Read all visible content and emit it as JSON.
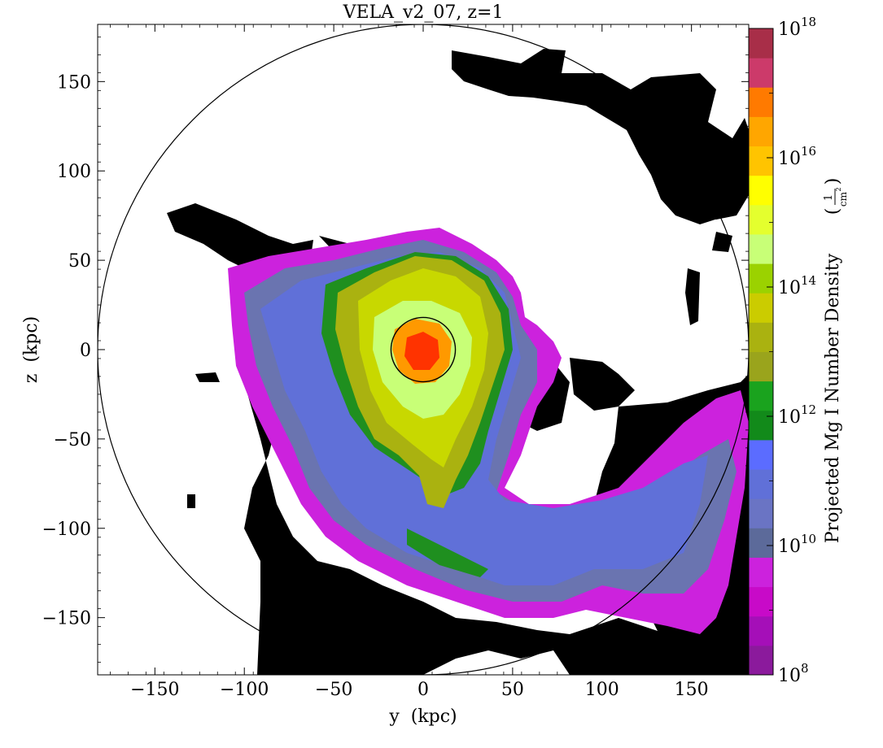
{
  "chart_data": {
    "type": "heatmap",
    "title": "VELA_v2_07, z=1",
    "xlabel": "y  (kpc)",
    "ylabel": "z  (kpc)",
    "xlim": [
      -182,
      182
    ],
    "ylim": [
      -182,
      182
    ],
    "x_ticks": [
      "−150",
      "−100",
      "−50",
      "0",
      "50",
      "100",
      "150"
    ],
    "y_ticks": [
      "150",
      "100",
      "50",
      "0",
      "−50",
      "−100",
      "−150"
    ],
    "x_tick_values": [
      -150,
      -100,
      -50,
      0,
      50,
      100,
      150
    ],
    "y_tick_values": [
      150,
      100,
      50,
      0,
      -50,
      -100,
      -150
    ],
    "circles_kpc": [
      {
        "cx": 0,
        "cy": 0,
        "r": 182
      },
      {
        "cx": 0,
        "cy": 0,
        "r": 18
      }
    ],
    "colorbar": {
      "label_main": "Projected Mg I Number Density",
      "label_unit_num": "1",
      "label_unit_den": "cm",
      "label_unit_exp": "2",
      "scale": "log",
      "min_exponent": 8,
      "max_exponent": 18,
      "tick_exponents": [
        "18",
        "16",
        "14",
        "12",
        "10",
        "8"
      ],
      "tick_base": "10",
      "tick_values_log10": [
        18,
        16,
        14,
        12,
        10,
        8
      ],
      "levels_per_decade": 2,
      "level_colors_bottom_to_top": [
        "#8b1a9c",
        "#a50fb8",
        "#c80ac8",
        "#cc22dd",
        "#5c6a9a",
        "#6a74c4",
        "#6070d8",
        "#5b6cff",
        "#128a1a",
        "#1aa31e",
        "#9aa41c",
        "#aab210",
        "#cbcc00",
        "#9bd200",
        "#c8ff77",
        "#e4ff2e",
        "#ffff00",
        "#ffc400",
        "#ffa600",
        "#ff7a00",
        "#cc3a6a",
        "#a82e48"
      ]
    },
    "density_field_colors": {
      "low": "#000000",
      "magenta": "#cc22dd",
      "slate": "#6a74b0",
      "blue": "#6070d8",
      "green": "#1f8f1f",
      "olive": "#aab210",
      "yellowgreen": "#c8d800",
      "lightgreen": "#c8ff77",
      "orange": "#ff9900",
      "red": "#ff3300"
    }
  }
}
